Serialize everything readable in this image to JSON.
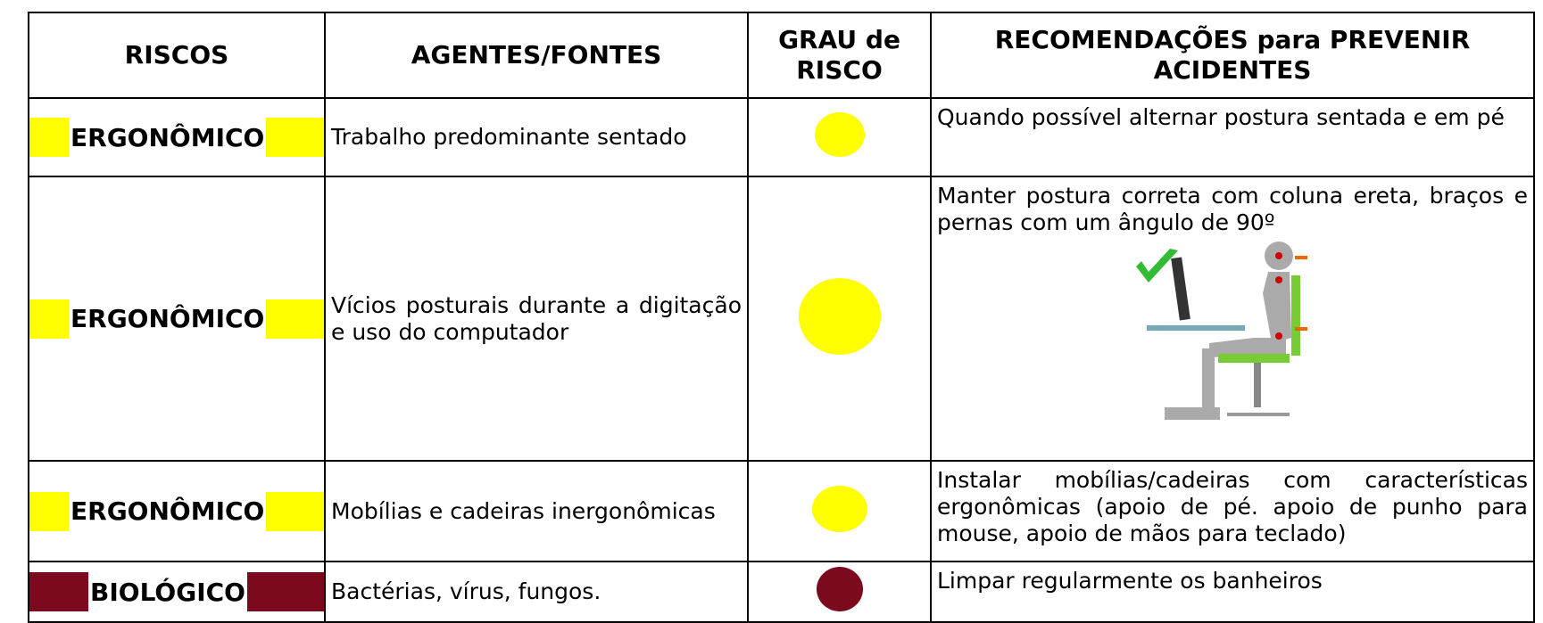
{
  "table": {
    "header": [
      "RISCOS",
      "AGENTES/FONTES",
      "GRAU de RISCO",
      "RECOMENDAÇÕES para PREVENIR ACIDENTES"
    ],
    "rows": [
      {
        "risk": "ERGONÔMICO",
        "color": "#ffff00",
        "agent": "Trabalho predominante sentado",
        "recommendation": "Quando possível alternar postura sentada e em pé"
      },
      {
        "risk": "ERGONÔMICO",
        "color": "#ffff00",
        "agent": "Vícios posturais durante a digitação e uso do computador",
        "recommendation": "Manter postura correta com coluna ereta, braços e pernas com um ângulo de 90º"
      },
      {
        "risk": "ERGONÔMICO",
        "color": "#ffff00",
        "agent": "Mobílias e cadeiras inergonômicas",
        "recommendation": "Instalar mobílias/cadeiras com características ergonômicas (apoio de pé. apoio de punho para mouse, apoio de mãos para teclado)"
      },
      {
        "risk": "BIOLÓGICO",
        "color": "#7b0a1e",
        "agent": "Bactérias, vírus, fungos.",
        "recommendation": "Limpar regularmente os banheiros"
      }
    ]
  }
}
